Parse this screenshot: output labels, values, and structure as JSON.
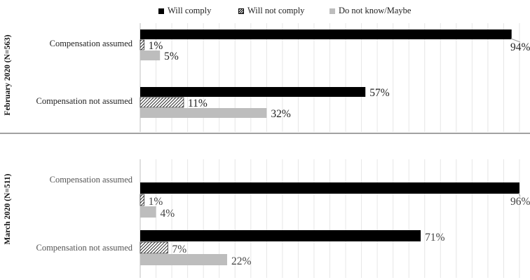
{
  "legend": {
    "comply_label": "Will comply",
    "notcomply_label": "Will not comply",
    "maybe_label": "Do not know/Maybe"
  },
  "colors": {
    "will_comply": "#000000",
    "will_not_comply": "hatched",
    "do_not_know": "#bdbdbd",
    "label_text_top": "#222222",
    "label_text_bottom": "#555555"
  },
  "chart_data": [
    {
      "type": "bar",
      "orientation": "horizontal",
      "panel_title": "February 2020 (N=563)",
      "categories": [
        "Compensation assumed",
        "Compensation not assumed"
      ],
      "series": [
        {
          "name": "Will comply",
          "values": [
            94,
            57
          ],
          "labels": [
            "94%",
            "57%"
          ]
        },
        {
          "name": "Will not comply",
          "values": [
            1,
            11
          ],
          "labels": [
            "1%",
            "11%"
          ]
        },
        {
          "name": "Do not know/Maybe",
          "values": [
            5,
            32
          ],
          "labels": [
            "5%",
            "32%"
          ]
        }
      ],
      "xlim": [
        0,
        96
      ],
      "grid": true,
      "legend_position": "top"
    },
    {
      "type": "bar",
      "orientation": "horizontal",
      "panel_title": "March 2020 (N=511)",
      "categories": [
        "Compensation assumed",
        "Compensation not assumed"
      ],
      "series": [
        {
          "name": "Will comply",
          "values": [
            96,
            71
          ],
          "labels": [
            "96%",
            "71%"
          ]
        },
        {
          "name": "Will not comply",
          "values": [
            1,
            7
          ],
          "labels": [
            "1%",
            "7%"
          ]
        },
        {
          "name": "Do not know/Maybe",
          "values": [
            4,
            22
          ],
          "labels": [
            "4%",
            "22%"
          ]
        }
      ],
      "xlim": [
        0,
        96
      ],
      "grid": true
    }
  ]
}
